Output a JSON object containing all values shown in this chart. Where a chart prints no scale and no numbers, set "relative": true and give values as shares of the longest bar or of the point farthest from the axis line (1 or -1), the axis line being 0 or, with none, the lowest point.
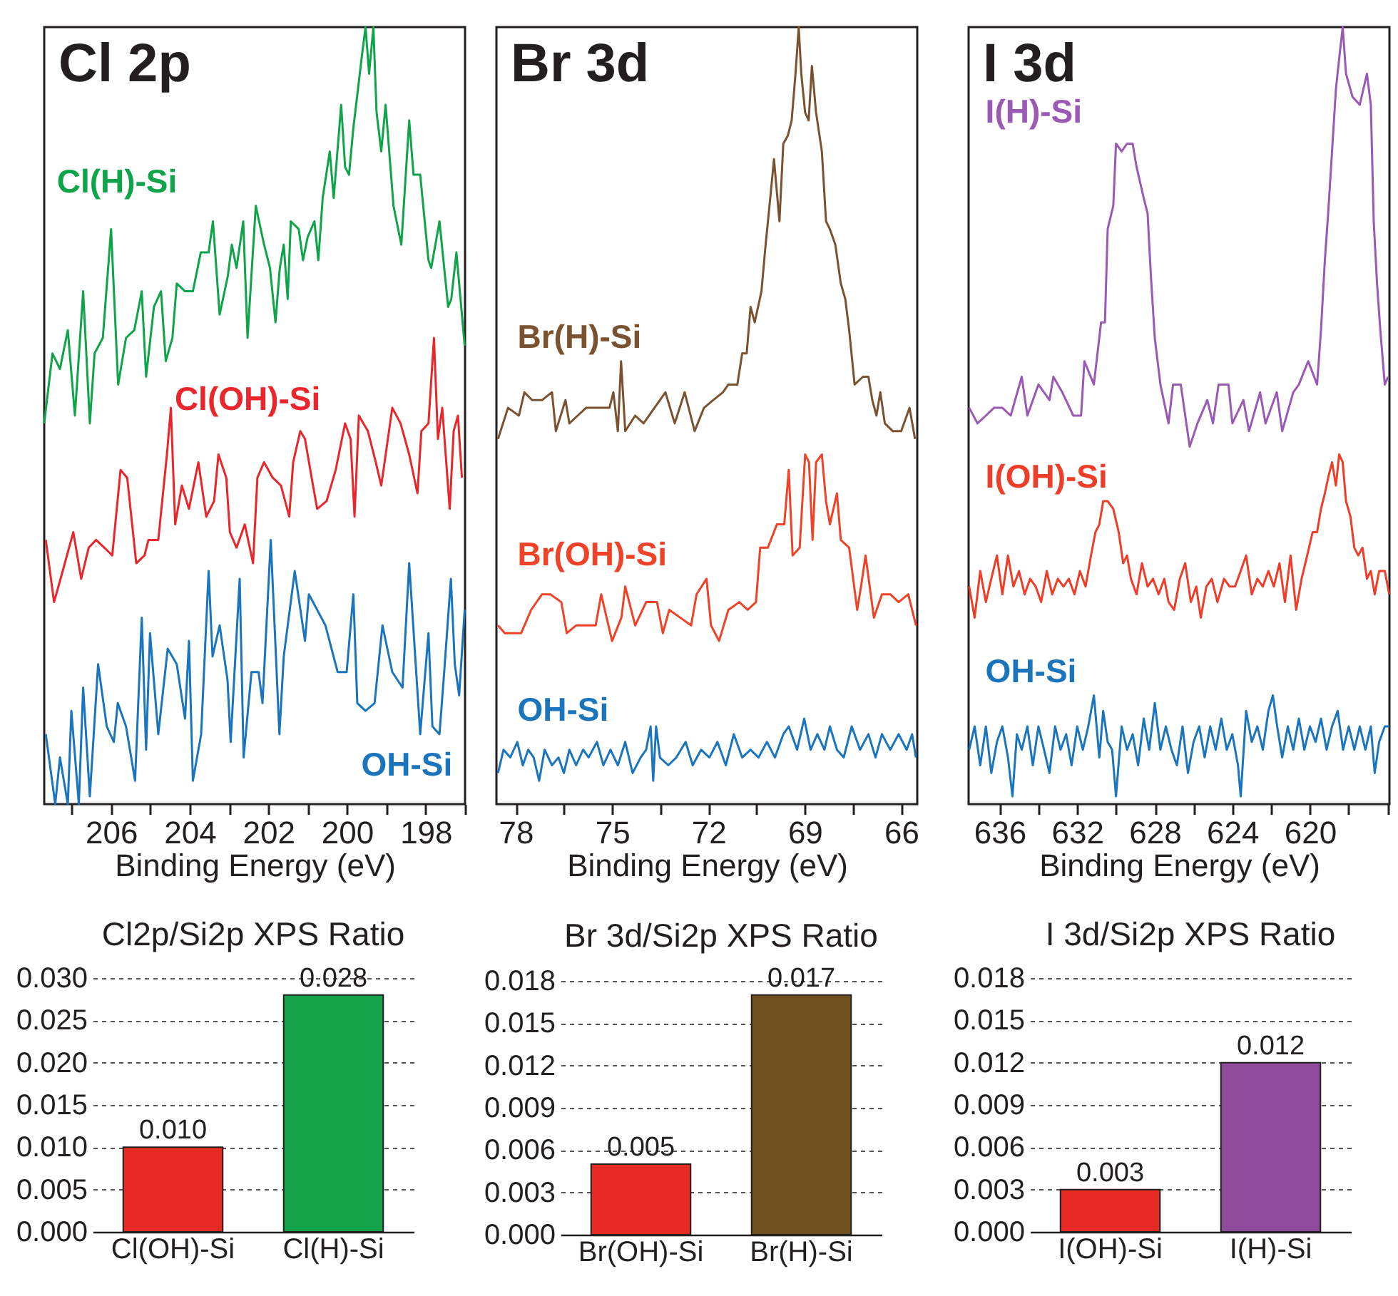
{
  "chart_data": [
    {
      "type": "line",
      "title": "Cl 2p",
      "xlabel": "Binding Energy (eV)",
      "relative": true,
      "xlim": [
        207.7,
        197.0
      ],
      "xticks": [
        {
          "value": 207,
          "label": null
        },
        206,
        {
          "value": 205,
          "label": null
        },
        204,
        {
          "value": 203,
          "label": null
        },
        202,
        {
          "value": 201,
          "label": null
        },
        200,
        {
          "value": 199,
          "label": null
        },
        198,
        {
          "value": 197,
          "label": null
        }
      ],
      "series": [
        {
          "name": "Cl(H)-Si",
          "color": "#10a44a",
          "x": [
            207.7,
            207.49,
            207.3,
            207.1,
            206.92,
            206.71,
            206.54,
            206.42,
            206.21,
            206.0,
            205.82,
            205.62,
            205.41,
            205.22,
            205.11,
            204.91,
            204.73,
            204.61,
            204.44,
            204.33,
            204.12,
            203.92,
            203.72,
            203.52,
            203.41,
            203.24,
            203.03,
            202.93,
            202.81,
            202.64,
            202.53,
            202.42,
            202.32,
            202.11,
            201.96,
            201.82,
            201.71,
            201.61,
            201.51,
            201.43,
            201.23,
            201.12,
            201.0,
            200.83,
            200.73,
            200.62,
            200.44,
            200.34,
            200.15,
            200.05,
            199.95,
            199.84,
            199.63,
            199.53,
            199.44,
            199.33,
            199.25,
            199.13,
            199.02,
            198.82,
            198.62,
            198.42,
            198.31,
            198.14,
            197.93,
            197.86,
            197.65,
            197.43,
            197.35,
            197.22,
            197.01
          ],
          "values": [
            0.49,
            0.58,
            0.56,
            0.61,
            0.5,
            0.66,
            0.49,
            0.58,
            0.6,
            0.74,
            0.54,
            0.6,
            0.61,
            0.66,
            0.55,
            0.64,
            0.66,
            0.57,
            0.6,
            0.67,
            0.66,
            0.66,
            0.71,
            0.71,
            0.75,
            0.63,
            0.68,
            0.72,
            0.69,
            0.75,
            0.6,
            0.69,
            0.77,
            0.72,
            0.69,
            0.62,
            0.69,
            0.72,
            0.65,
            0.75,
            0.74,
            0.7,
            0.73,
            0.75,
            0.7,
            0.78,
            0.84,
            0.78,
            0.9,
            0.82,
            0.81,
            0.87,
            0.96,
            1.0,
            0.94,
            1.0,
            0.89,
            0.84,
            0.9,
            0.77,
            0.72,
            0.88,
            0.81,
            0.81,
            0.7,
            0.69,
            0.75,
            0.64,
            0.65,
            0.71,
            0.59
          ]
        },
        {
          "name": "Cl(OH)-Si",
          "color": "#e8262b",
          "x": [
            207.66,
            207.45,
            207.23,
            206.96,
            206.76,
            206.57,
            206.38,
            206.17,
            205.97,
            205.76,
            205.59,
            205.36,
            205.15,
            205.05,
            204.8,
            204.58,
            204.48,
            204.37,
            204.2,
            204.02,
            203.78,
            203.58,
            203.38,
            203.27,
            203.07,
            202.98,
            202.81,
            202.6,
            202.39,
            202.28,
            202.11,
            201.89,
            201.68,
            201.47,
            201.37,
            201.19,
            201.07,
            200.9,
            200.76,
            200.52,
            200.29,
            200.05,
            199.91,
            199.81,
            199.7,
            199.47,
            199.27,
            199.13,
            198.85,
            198.64,
            198.42,
            198.21,
            198.11,
            197.93,
            197.79,
            197.69,
            197.58,
            197.39,
            197.29,
            197.18,
            197.08
          ],
          "values": [
            0.34,
            0.26,
            0.3,
            0.35,
            0.29,
            0.33,
            0.34,
            0.33,
            0.32,
            0.43,
            0.42,
            0.31,
            0.32,
            0.34,
            0.34,
            0.45,
            0.51,
            0.36,
            0.41,
            0.38,
            0.44,
            0.37,
            0.39,
            0.45,
            0.42,
            0.35,
            0.33,
            0.36,
            0.31,
            0.42,
            0.44,
            0.42,
            0.41,
            0.37,
            0.44,
            0.48,
            0.47,
            0.42,
            0.38,
            0.39,
            0.43,
            0.49,
            0.47,
            0.37,
            0.5,
            0.48,
            0.44,
            0.41,
            0.51,
            0.49,
            0.45,
            0.4,
            0.48,
            0.49,
            0.6,
            0.47,
            0.51,
            0.38,
            0.48,
            0.5,
            0.42
          ]
        },
        {
          "name": "OH-Si",
          "color": "#1b75bc",
          "x": [
            207.66,
            207.42,
            207.3,
            207.1,
            207.01,
            206.82,
            206.71,
            206.54,
            206.33,
            206.11,
            205.93,
            205.83,
            205.62,
            205.39,
            205.22,
            205.11,
            205.01,
            204.8,
            204.56,
            204.33,
            204.12,
            204.02,
            203.92,
            203.71,
            203.52,
            203.42,
            203.24,
            203.04,
            202.96,
            202.73,
            202.63,
            202.43,
            202.25,
            202.15,
            201.94,
            201.72,
            201.61,
            201.33,
            201.07,
            200.97,
            200.76,
            200.55,
            200.24,
            200.01,
            199.84,
            199.74,
            199.53,
            199.3,
            199.1,
            198.85,
            198.59,
            198.42,
            198.14,
            197.93,
            197.83,
            197.65,
            197.53,
            197.36,
            197.26,
            197.15,
            197.01
          ],
          "values": [
            0.09,
            0,
            0.06,
            0,
            0.12,
            0,
            0.15,
            0.01,
            0.18,
            0.1,
            0.08,
            0.13,
            0.1,
            0.03,
            0.24,
            0.07,
            0.22,
            0.09,
            0.2,
            0.18,
            0.11,
            0.21,
            0.03,
            0.09,
            0.3,
            0.19,
            0.23,
            0.16,
            0.08,
            0.29,
            0.06,
            0.17,
            0.17,
            0.13,
            0.34,
            0.09,
            0.19,
            0.3,
            0.21,
            0.27,
            0.25,
            0.23,
            0.17,
            0.17,
            0.27,
            0.13,
            0.12,
            0.13,
            0.23,
            0.17,
            0.15,
            0.31,
            0.09,
            0.22,
            0.1,
            0.09,
            0.17,
            0.29,
            0.18,
            0.14,
            0.25
          ]
        }
      ]
    },
    {
      "type": "line",
      "title": "Br 3d",
      "xlabel": "Binding Energy (eV)",
      "relative": true,
      "xlim": [
        78.6,
        65.5
      ],
      "xticks": [
        78,
        {
          "value": 76.5,
          "label": null
        },
        75,
        {
          "value": 73.5,
          "label": null
        },
        72,
        {
          "value": 70.5,
          "label": null
        },
        69,
        {
          "value": 67.5,
          "label": null
        },
        66
      ],
      "series": [
        {
          "name": "Br(H)-Si",
          "color": "#7a5230",
          "x": [
            78.55,
            78.24,
            77.9,
            77.73,
            77.49,
            77.18,
            76.87,
            76.75,
            76.45,
            76.33,
            76.07,
            75.81,
            75.47,
            75.08,
            74.96,
            74.82,
            74.72,
            74.59,
            74.28,
            74.02,
            73.68,
            73.34,
            73.05,
            72.74,
            72.43,
            72.14,
            71.85,
            71.55,
            71.38,
            71.1,
            70.95,
            70.81,
            70.69,
            70.56,
            70.35,
            70.22,
            70.1,
            69.96,
            69.79,
            69.67,
            69.53,
            69.41,
            69.29,
            69.19,
            69.11,
            68.99,
            68.88,
            68.78,
            68.65,
            68.47,
            68.34,
            68.22,
            68.05,
            67.88,
            67.74,
            67.62,
            67.45,
            67.19,
            67.02,
            66.9,
            66.77,
            66.65,
            66.51,
            66.26,
            66.0,
            65.74,
            65.57
          ],
          "values": [
            0.47,
            0.51,
            0.5,
            0.53,
            0.52,
            0.52,
            0.53,
            0.48,
            0.52,
            0.49,
            0.5,
            0.51,
            0.51,
            0.51,
            0.53,
            0.48,
            0.57,
            0.48,
            0.5,
            0.49,
            0.51,
            0.53,
            0.49,
            0.53,
            0.48,
            0.51,
            0.52,
            0.53,
            0.54,
            0.54,
            0.58,
            0.58,
            0.64,
            0.62,
            0.66,
            0.72,
            0.77,
            0.83,
            0.75,
            0.85,
            0.86,
            0.88,
            0.94,
            1.0,
            0.94,
            0.89,
            0.88,
            0.95,
            0.89,
            0.84,
            0.75,
            0.74,
            0.72,
            0.67,
            0.65,
            0.61,
            0.54,
            0.55,
            0.55,
            0.52,
            0.5,
            0.53,
            0.49,
            0.48,
            0.48,
            0.51,
            0.47
          ]
        },
        {
          "name": "Br(OH)-Si",
          "color": "#ee4328",
          "x": [
            78.55,
            78.34,
            78.07,
            77.83,
            77.52,
            77.18,
            76.92,
            76.58,
            76.41,
            76.12,
            75.81,
            75.51,
            75.34,
            75.0,
            74.71,
            74.59,
            74.28,
            73.94,
            73.6,
            73.42,
            73.22,
            72.88,
            72.54,
            72.37,
            72.06,
            71.92,
            71.67,
            71.38,
            71.04,
            70.78,
            70.52,
            70.39,
            70.15,
            69.87,
            69.64,
            69.5,
            69.38,
            69.16,
            68.99,
            68.87,
            68.76,
            68.65,
            68.47,
            68.34,
            68.22,
            68.0,
            67.88,
            67.62,
            67.37,
            67.25,
            67.11,
            66.85,
            66.6,
            66.34,
            66.08,
            65.78,
            65.54
          ],
          "values": [
            0.23,
            0.22,
            0.22,
            0.22,
            0.25,
            0.27,
            0.27,
            0.26,
            0.22,
            0.23,
            0.23,
            0.23,
            0.27,
            0.21,
            0.24,
            0.28,
            0.23,
            0.26,
            0.26,
            0.22,
            0.25,
            0.24,
            0.23,
            0.27,
            0.29,
            0.23,
            0.21,
            0.25,
            0.26,
            0.25,
            0.26,
            0.33,
            0.33,
            0.36,
            0.36,
            0.43,
            0.32,
            0.33,
            0.45,
            0.44,
            0.34,
            0.44,
            0.45,
            0.39,
            0.36,
            0.4,
            0.34,
            0.33,
            0.25,
            0.28,
            0.32,
            0.24,
            0.27,
            0.27,
            0.26,
            0.27,
            0.23
          ]
        },
        {
          "name": "OH-Si",
          "color": "#1b75bc",
          "x": [
            78.55,
            78.38,
            78.17,
            77.95,
            77.78,
            77.61,
            77.44,
            77.27,
            77.1,
            76.87,
            76.67,
            76.5,
            76.33,
            76.12,
            75.9,
            75.73,
            75.47,
            75.27,
            75.05,
            74.82,
            74.59,
            74.36,
            74.11,
            73.94,
            73.8,
            73.72,
            73.63,
            73.51,
            73.25,
            73.0,
            72.71,
            72.49,
            72.23,
            71.97,
            71.72,
            71.46,
            71.21,
            70.95,
            70.69,
            70.44,
            70.18,
            69.93,
            69.67,
            69.5,
            69.24,
            69.02,
            68.82,
            68.61,
            68.39,
            68.22,
            68.0,
            67.79,
            67.54,
            67.28,
            67.02,
            66.8,
            66.6,
            66.34,
            66.08,
            65.83,
            65.66,
            65.54
          ],
          "values": [
            0.04,
            0.07,
            0.06,
            0.08,
            0.05,
            0.07,
            0.06,
            0.03,
            0.07,
            0.05,
            0.06,
            0.04,
            0.07,
            0.05,
            0.07,
            0.06,
            0.08,
            0.05,
            0.07,
            0.05,
            0.08,
            0.04,
            0.06,
            0.07,
            0.1,
            0.03,
            0.1,
            0.06,
            0.05,
            0.06,
            0.08,
            0.05,
            0.07,
            0.06,
            0.08,
            0.05,
            0.09,
            0.06,
            0.07,
            0.06,
            0.08,
            0.06,
            0.09,
            0.1,
            0.07,
            0.11,
            0.07,
            0.09,
            0.07,
            0.1,
            0.07,
            0.06,
            0.1,
            0.07,
            0.09,
            0.06,
            0.09,
            0.07,
            0.09,
            0.07,
            0.09,
            0.06
          ]
        }
      ]
    },
    {
      "type": "line",
      "title": "I 3d",
      "xlabel": "Binding Energy (eV)",
      "relative": true,
      "xlim": [
        637.6,
        615.9
      ],
      "xticks": [
        636,
        {
          "value": 634,
          "label": null
        },
        632,
        {
          "value": 630,
          "label": null
        },
        628,
        {
          "value": 626,
          "label": null
        },
        624,
        {
          "value": 622,
          "label": null
        },
        620,
        {
          "value": 618,
          "label": null
        },
        {
          "value": 616,
          "label": null
        }
      ],
      "series": [
        {
          "name": "I(H)-Si",
          "color": "#9b59b6",
          "x": [
            637.57,
            637.14,
            636.71,
            636.29,
            635.86,
            635.43,
            634.86,
            634.57,
            634.0,
            633.43,
            633.23,
            632.77,
            632.2,
            631.8,
            631.63,
            631.14,
            630.77,
            630.57,
            630.43,
            630.14,
            630.0,
            629.71,
            629.43,
            629.14,
            628.94,
            628.57,
            628.37,
            628.2,
            628.0,
            627.71,
            627.29,
            627.06,
            626.66,
            626.2,
            625.8,
            625.29,
            625.0,
            624.71,
            624.2,
            624.0,
            623.43,
            623.14,
            622.57,
            622.29,
            621.71,
            621.43,
            620.86,
            620.57,
            620.09,
            619.63,
            619.43,
            619.23,
            619.06,
            618.86,
            618.66,
            618.49,
            618.31,
            618.14,
            617.8,
            617.43,
            617.06,
            616.86,
            616.71,
            616.54,
            616.37,
            616.14,
            615.97
          ],
          "values": [
            0.51,
            0.49,
            0.5,
            0.51,
            0.51,
            0.5,
            0.55,
            0.5,
            0.54,
            0.52,
            0.55,
            0.53,
            0.5,
            0.5,
            0.57,
            0.54,
            0.62,
            0.62,
            0.74,
            0.77,
            0.85,
            0.84,
            0.85,
            0.85,
            0.82,
            0.78,
            0.76,
            0.68,
            0.6,
            0.54,
            0.49,
            0.54,
            0.54,
            0.46,
            0.49,
            0.52,
            0.49,
            0.54,
            0.54,
            0.49,
            0.52,
            0.48,
            0.53,
            0.49,
            0.53,
            0.48,
            0.53,
            0.54,
            0.57,
            0.54,
            0.61,
            0.7,
            0.76,
            0.84,
            0.92,
            0.96,
            1.0,
            0.94,
            0.91,
            0.9,
            0.94,
            0.9,
            0.75,
            0.67,
            0.61,
            0.54,
            0.55
          ]
        },
        {
          "name": "I(OH)-Si",
          "color": "#ee3e2a",
          "x": [
            637.57,
            637.29,
            637.0,
            636.71,
            636.43,
            636.14,
            635.86,
            635.57,
            635.29,
            635.0,
            634.71,
            634.43,
            634.14,
            633.86,
            633.57,
            633.29,
            633.0,
            632.71,
            632.43,
            632.14,
            631.86,
            631.57,
            631.29,
            631.06,
            630.86,
            630.66,
            630.43,
            630.14,
            629.86,
            629.63,
            629.43,
            629.23,
            628.94,
            628.66,
            628.37,
            628.09,
            627.8,
            627.51,
            627.29,
            627.0,
            626.71,
            626.43,
            626.14,
            625.86,
            625.63,
            625.34,
            625.06,
            624.77,
            624.43,
            624.14,
            623.86,
            623.57,
            623.29,
            623.0,
            622.71,
            622.43,
            622.14,
            621.86,
            621.57,
            621.29,
            621.0,
            620.71,
            620.43,
            620.14,
            619.86,
            619.63,
            619.43,
            619.23,
            619.06,
            618.86,
            618.66,
            618.49,
            618.31,
            618.14,
            617.91,
            617.71,
            617.51,
            617.29,
            617.06,
            616.86,
            616.66,
            616.43,
            616.14,
            615.91
          ],
          "values": [
            0.28,
            0.24,
            0.3,
            0.26,
            0.29,
            0.32,
            0.27,
            0.32,
            0.28,
            0.3,
            0.27,
            0.29,
            0.28,
            0.26,
            0.3,
            0.27,
            0.29,
            0.28,
            0.29,
            0.27,
            0.3,
            0.28,
            0.32,
            0.35,
            0.36,
            0.39,
            0.39,
            0.38,
            0.35,
            0.31,
            0.32,
            0.29,
            0.27,
            0.31,
            0.28,
            0.29,
            0.27,
            0.29,
            0.26,
            0.25,
            0.29,
            0.31,
            0.26,
            0.28,
            0.24,
            0.28,
            0.29,
            0.26,
            0.29,
            0.28,
            0.28,
            0.3,
            0.32,
            0.27,
            0.29,
            0.28,
            0.3,
            0.28,
            0.31,
            0.26,
            0.32,
            0.25,
            0.29,
            0.32,
            0.35,
            0.35,
            0.38,
            0.4,
            0.42,
            0.44,
            0.41,
            0.45,
            0.44,
            0.39,
            0.37,
            0.33,
            0.32,
            0.33,
            0.29,
            0.3,
            0.27,
            0.3,
            0.3,
            0.27
          ]
        },
        {
          "name": "OH-Si",
          "color": "#1b75bc",
          "x": [
            637.57,
            637.29,
            637.0,
            636.71,
            636.43,
            636.14,
            635.86,
            635.57,
            635.34,
            635.11,
            634.86,
            634.57,
            634.29,
            634.0,
            633.71,
            633.43,
            633.14,
            632.86,
            632.57,
            632.29,
            632.0,
            631.71,
            631.43,
            631.14,
            630.86,
            630.66,
            630.43,
            630.2,
            630.0,
            629.71,
            629.43,
            629.14,
            628.86,
            628.57,
            628.29,
            628.0,
            627.71,
            627.43,
            627.14,
            626.86,
            626.57,
            626.29,
            626.0,
            625.71,
            625.43,
            625.14,
            624.86,
            624.57,
            624.29,
            624.0,
            623.71,
            623.57,
            623.29,
            623.0,
            622.71,
            622.43,
            622.14,
            621.91,
            621.69,
            621.43,
            621.14,
            620.86,
            620.57,
            620.29,
            620.0,
            619.71,
            619.43,
            619.14,
            618.86,
            618.57,
            618.29,
            618.0,
            617.71,
            617.43,
            617.14,
            616.86,
            616.66,
            616.43,
            616.14,
            615.91
          ],
          "values": [
            0.07,
            0.1,
            0.05,
            0.1,
            0.04,
            0.08,
            0.1,
            0.06,
            0.01,
            0.09,
            0.07,
            0.1,
            0.05,
            0.1,
            0.07,
            0.04,
            0.1,
            0.07,
            0.09,
            0.05,
            0.1,
            0.07,
            0.1,
            0.14,
            0.06,
            0.12,
            0.08,
            0.07,
            0.01,
            0.1,
            0.07,
            0.09,
            0.05,
            0.11,
            0.07,
            0.13,
            0.07,
            0.1,
            0.07,
            0.05,
            0.1,
            0.04,
            0.08,
            0.1,
            0.06,
            0.1,
            0.07,
            0.11,
            0.07,
            0.09,
            0.05,
            0.01,
            0.12,
            0.08,
            0.1,
            0.07,
            0.12,
            0.14,
            0.1,
            0.06,
            0.1,
            0.07,
            0.11,
            0.07,
            0.1,
            0.08,
            0.11,
            0.07,
            0.1,
            0.12,
            0.07,
            0.1,
            0.07,
            0.1,
            0.07,
            0.1,
            0.04,
            0.08,
            0.1,
            0.1
          ]
        }
      ]
    },
    {
      "type": "bar",
      "title": "Cl2p/Si2p XPS Ratio",
      "categories": [
        "Cl(OH)-Si",
        "Cl(H)-Si"
      ],
      "values": [
        0.01,
        0.028
      ],
      "colors": [
        "#e52b23",
        "#16a34a"
      ],
      "value_labels": [
        "0.010",
        "0.028"
      ],
      "ylim": [
        0,
        0.03
      ],
      "yticks": [
        {
          "value": 0,
          "label": "0.000"
        },
        {
          "value": 0.005,
          "label": "0.005"
        },
        {
          "value": 0.01,
          "label": "0.010"
        },
        {
          "value": 0.015,
          "label": "0.015"
        },
        {
          "value": 0.02,
          "label": "0.020"
        },
        {
          "value": 0.025,
          "label": "0.025"
        },
        {
          "value": 0.03,
          "label": "0.030"
        }
      ],
      "grid": "y"
    },
    {
      "type": "bar",
      "title": "Br 3d/Si2p XPS Ratio",
      "categories": [
        "Br(OH)-Si",
        "Br(H)-Si"
      ],
      "values": [
        0.005,
        0.017
      ],
      "colors": [
        "#e52b23",
        "#71501f"
      ],
      "value_labels": [
        "0.005",
        "0.017"
      ],
      "ylim": [
        0,
        0.018
      ],
      "yticks": [
        {
          "value": 0,
          "label": "0.000"
        },
        {
          "value": 0.003,
          "label": "0.003"
        },
        {
          "value": 0.006,
          "label": "0.006"
        },
        {
          "value": 0.009,
          "label": "0.009"
        },
        {
          "value": 0.012,
          "label": "0.012"
        },
        {
          "value": 0.015,
          "label": "0.015"
        },
        {
          "value": 0.018,
          "label": "0.018"
        }
      ],
      "grid": "y"
    },
    {
      "type": "bar",
      "title": "I 3d/Si2p XPS Ratio",
      "categories": [
        "I(OH)-Si",
        "I(H)-Si"
      ],
      "values": [
        0.003,
        0.012
      ],
      "colors": [
        "#e52b23",
        "#8e4b9c"
      ],
      "value_labels": [
        "0.003",
        "0.012"
      ],
      "ylim": [
        0,
        0.018
      ],
      "yticks": [
        {
          "value": 0,
          "label": "0.000"
        },
        {
          "value": 0.003,
          "label": "0.003"
        },
        {
          "value": 0.006,
          "label": "0.006"
        },
        {
          "value": 0.009,
          "label": "0.009"
        },
        {
          "value": 0.012,
          "label": "0.012"
        },
        {
          "value": 0.015,
          "label": "0.015"
        },
        {
          "value": 0.018,
          "label": "0.018"
        }
      ],
      "grid": "y"
    }
  ]
}
